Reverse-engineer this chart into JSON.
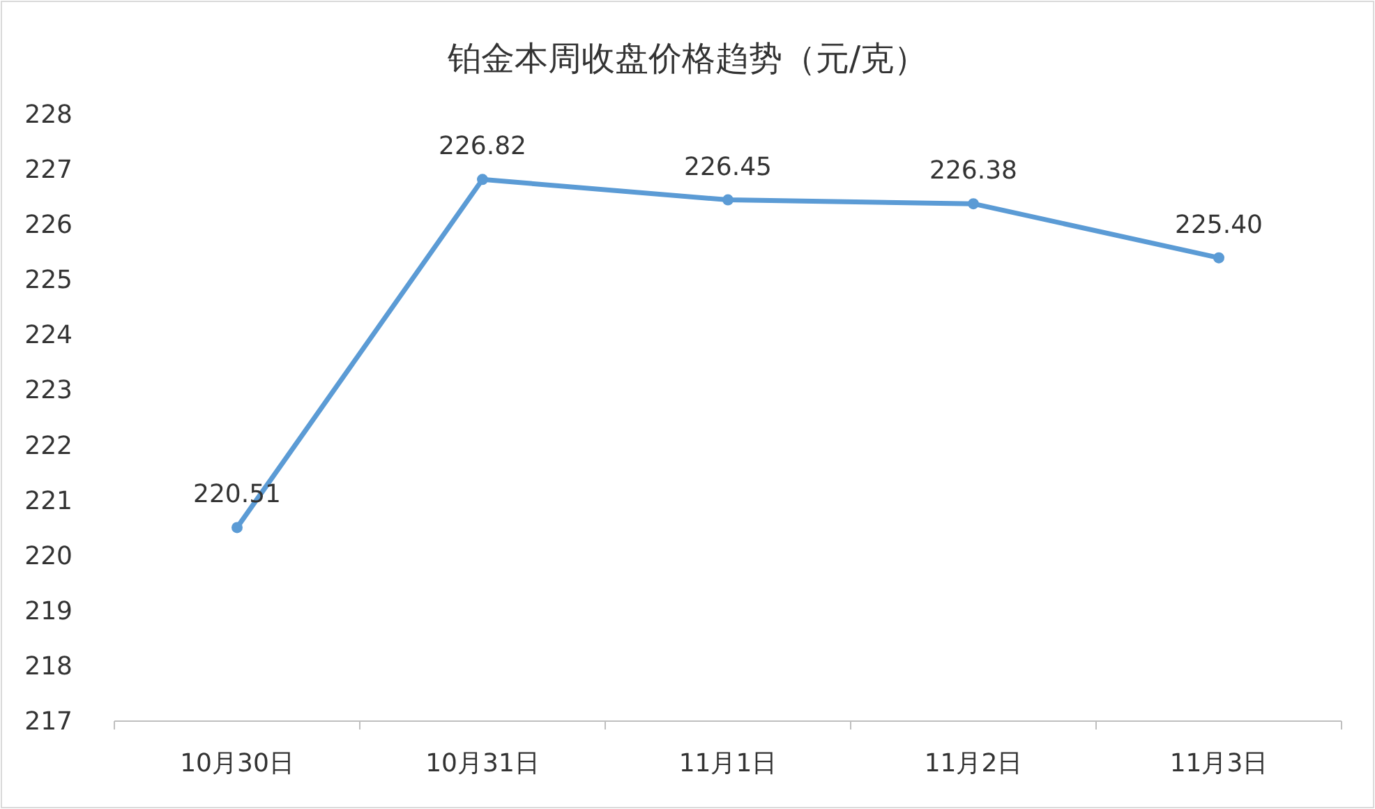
{
  "chart_data": {
    "type": "line",
    "title": "铂金本周收盘价格趋势（元/克）",
    "categories": [
      "10月30日",
      "10月31日",
      "11月1日",
      "11月2日",
      "11月3日"
    ],
    "series": [
      {
        "color": "#5b9bd5",
        "values": [
          220.51,
          226.82,
          226.45,
          226.38,
          225.4
        ],
        "value_labels": [
          "220.51",
          "226.82",
          "226.45",
          "226.38",
          "225.40"
        ]
      }
    ],
    "ylim": [
      217,
      228
    ],
    "yticks": [
      217,
      218,
      219,
      220,
      221,
      222,
      223,
      224,
      225,
      226,
      227,
      228
    ],
    "marker": "circle",
    "line_style": "solid"
  }
}
